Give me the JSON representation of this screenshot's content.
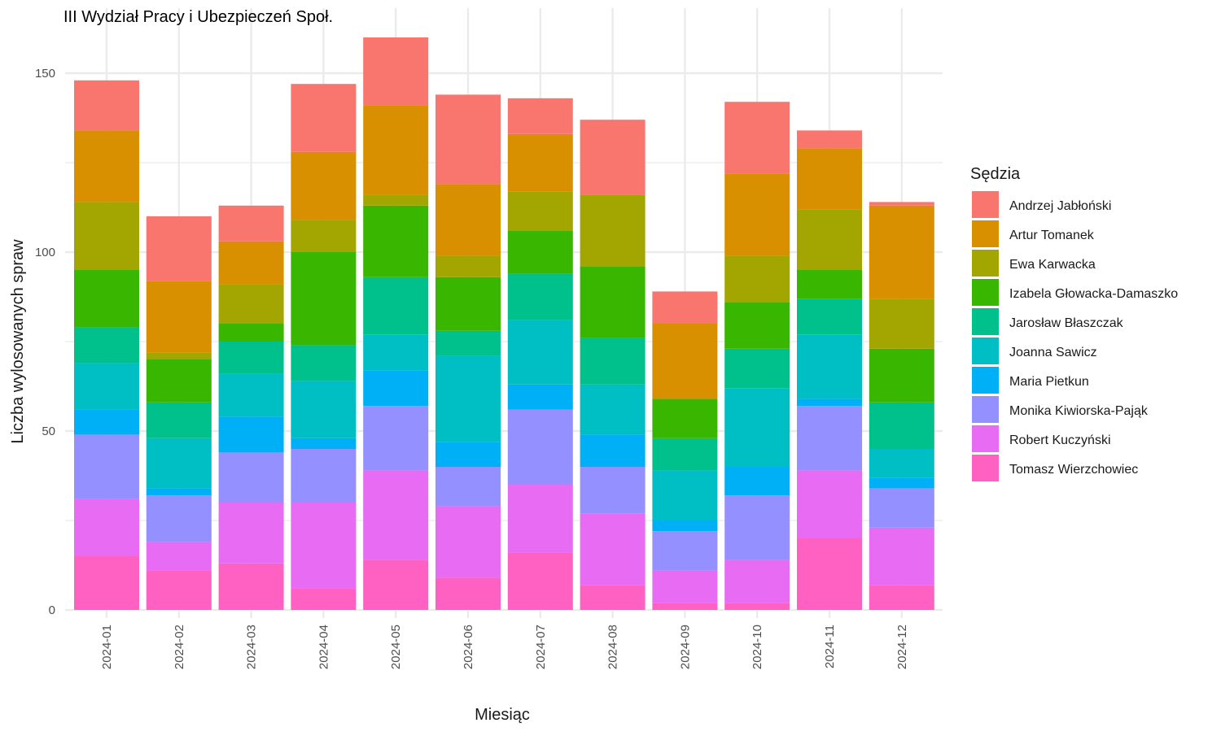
{
  "chart_data": {
    "type": "bar",
    "stacked": true,
    "title": "III Wydział Pracy i Ubezpieczeń Społ.",
    "xlabel": "Miesiąc",
    "ylabel": "Liczba wylosowanych spraw",
    "ylim": [
      0,
      160
    ],
    "yticks": [
      0,
      50,
      100,
      150
    ],
    "grid": true,
    "legend_title": "Sędzia",
    "legend_position": "right",
    "categories": [
      "2024-01",
      "2024-02",
      "2024-03",
      "2024-04",
      "2024-05",
      "2024-06",
      "2024-07",
      "2024-08",
      "2024-09",
      "2024-10",
      "2024-11",
      "2024-12"
    ],
    "series": [
      {
        "name": "Tomasz Wierzchowiec",
        "color": "#FF61C3",
        "values": [
          15,
          11,
          13,
          6,
          14,
          9,
          16,
          7,
          2,
          2,
          20,
          7
        ]
      },
      {
        "name": "Robert Kuczyński",
        "color": "#E76BF3",
        "values": [
          16,
          8,
          17,
          24,
          25,
          20,
          19,
          20,
          9,
          12,
          19,
          16
        ]
      },
      {
        "name": "Monika Kiwiorska-Pająk",
        "color": "#9590FF",
        "values": [
          18,
          13,
          14,
          15,
          18,
          11,
          21,
          13,
          11,
          18,
          18,
          11
        ]
      },
      {
        "name": "Maria Pietkun",
        "color": "#00B0F6",
        "values": [
          7,
          2,
          10,
          3,
          10,
          7,
          7,
          9,
          3,
          8,
          2,
          3
        ]
      },
      {
        "name": "Joanna Sawicz",
        "color": "#00BFC4",
        "values": [
          13,
          14,
          12,
          16,
          10,
          24,
          18,
          14,
          14,
          22,
          18,
          8
        ]
      },
      {
        "name": "Jarosław Błaszczak",
        "color": "#00C08B",
        "values": [
          10,
          10,
          9,
          10,
          16,
          7,
          13,
          13,
          9,
          11,
          10,
          13
        ]
      },
      {
        "name": "Izabela Głowacka-Damaszko",
        "color": "#39B600",
        "values": [
          16,
          12,
          5,
          26,
          20,
          15,
          12,
          20,
          11,
          13,
          8,
          15
        ]
      },
      {
        "name": "Ewa Karwacka",
        "color": "#A3A500",
        "values": [
          19,
          2,
          11,
          9,
          3,
          6,
          11,
          20,
          0,
          13,
          17,
          14
        ]
      },
      {
        "name": "Artur Tomanek",
        "color": "#D89000",
        "values": [
          20,
          20,
          12,
          19,
          25,
          20,
          16,
          0,
          21,
          23,
          17,
          26
        ]
      },
      {
        "name": "Andrzej Jabłoński",
        "color": "#F8766D",
        "values": [
          14,
          18,
          10,
          19,
          19,
          25,
          10,
          21,
          9,
          20,
          5,
          1
        ]
      }
    ],
    "legend_order": [
      "Andrzej Jabłoński",
      "Artur Tomanek",
      "Ewa Karwacka",
      "Izabela Głowacka-Damaszko",
      "Jarosław Błaszczak",
      "Joanna Sawicz",
      "Maria Pietkun",
      "Monika Kiwiorska-Pająk",
      "Robert Kuczyński",
      "Tomasz Wierzchowiec"
    ]
  }
}
